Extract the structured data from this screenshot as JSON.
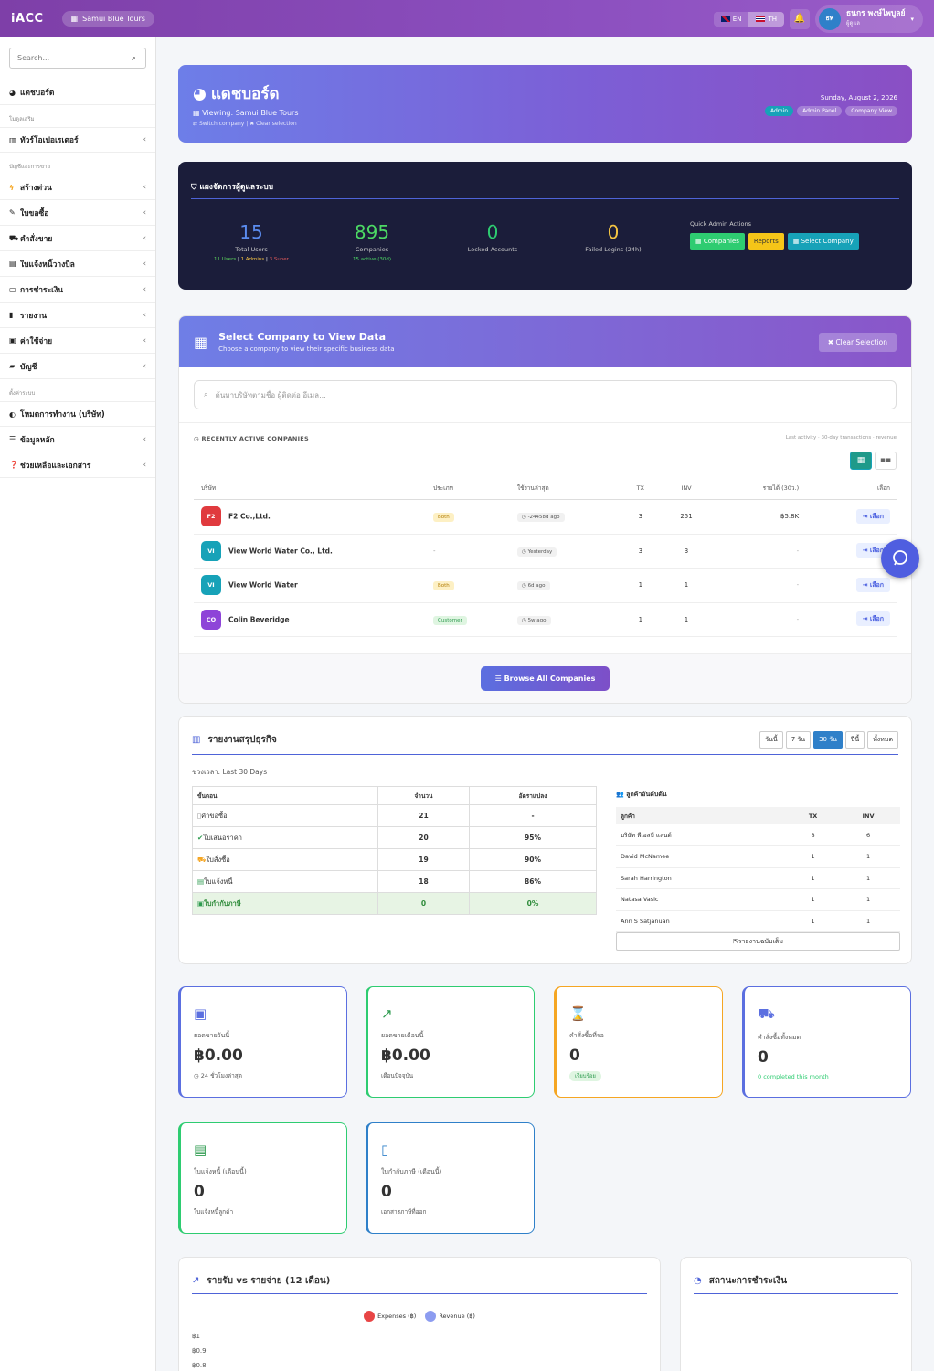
{
  "topbar": {
    "brand": "iACC",
    "company": "Samui Blue Tours",
    "lang_en": "EN",
    "lang_th": "TH",
    "avatar": "ธพ",
    "user_name": "ธนกร พงษ์ไพบูลย์",
    "user_role": "ผู้ดูแล"
  },
  "sidebar": {
    "search_placeholder": "Search...",
    "dashboard": "แดชบอร์ด",
    "sec_modules": "โมดูลเสริม",
    "tour_operator": "ทัวร์โอเปอเรเตอร์",
    "sec_accounting": "บัญชีและการขาย",
    "items": [
      "สร้างด่วน",
      "ใบขอซื้อ",
      "คำสั่งขาย",
      "ใบแจ้งหนี้วางบิล",
      "การชำระเงิน",
      "รายงาน",
      "ค่าใช้จ่าย",
      "บัญชี"
    ],
    "sec_settings": "ตั้งค่าระบบ",
    "work_mode": "โหมดการทำงาน (บริษัท)",
    "master_data": "ข้อมูลหลัก",
    "help": "ช่วยเหลือและเอกสาร"
  },
  "hero": {
    "title": "แดชบอร์ด",
    "viewing": "Viewing: Samui Blue Tours",
    "switch": "Switch company",
    "clear": "Clear selection",
    "date": "Sunday, August 2, 2026",
    "badges": [
      "Admin",
      "Admin Panel",
      "Company View"
    ]
  },
  "admin": {
    "title": "แผงจัดการผู้ดูแลระบบ",
    "total_users": "15",
    "total_users_label": "Total Users",
    "users_sub_a": "11 Users",
    "users_sub_b": "1 Admins",
    "users_sub_c": "3 Super",
    "companies": "895",
    "companies_label": "Companies",
    "companies_sub": "15 active (30d)",
    "locked": "0",
    "locked_label": "Locked Accounts",
    "failed": "0",
    "failed_label": "Failed Logins (24h)",
    "qa_title": "Quick Admin Actions",
    "qa_companies": "Companies",
    "qa_reports": "Reports",
    "qa_select": "Select Company"
  },
  "select": {
    "title": "Select Company to View Data",
    "subtitle": "Choose a company to view their specific business data",
    "clear": "Clear Selection",
    "search_placeholder": "ค้นหาบริษัทตามชื่อ ผู้ติดต่อ อีเมล...",
    "recent_label": "RECENTLY ACTIVE COMPANIES",
    "recent_note": "Last activity · 30-day transactions · revenue",
    "cols": [
      "บริษัท",
      "ประเภท",
      "ใช้งานล่าสุด",
      "TX",
      "INV",
      "รายได้ (30ว.)",
      "เลือก"
    ],
    "rows": [
      {
        "logo": "F2",
        "color": "#e03a3e",
        "name": "F2 Co.,Ltd.",
        "type": "Both",
        "ago": "-24458d ago",
        "tx": "3",
        "inv": "251",
        "rev": "฿5.8K",
        "pick": "เลือก"
      },
      {
        "logo": "VI",
        "color": "#17a2b8",
        "name": "View World Water Co., Ltd.",
        "type": "-",
        "ago": "Yesterday",
        "tx": "3",
        "inv": "3",
        "rev": "-",
        "pick": "เลือก"
      },
      {
        "logo": "VI",
        "color": "#17a2b8",
        "name": "View World Water",
        "type": "Both",
        "ago": "6d ago",
        "tx": "1",
        "inv": "1",
        "rev": "-",
        "pick": "เลือก"
      },
      {
        "logo": "CO",
        "color": "#8e44d8",
        "name": "Colin Beveridge",
        "type": "Customer",
        "ago": "5w ago",
        "tx": "1",
        "inv": "1",
        "rev": "-",
        "pick": "เลือก"
      }
    ],
    "browse": "Browse All Companies"
  },
  "summary": {
    "title": "รายงานสรุปธุรกิจ",
    "periods": [
      "วันนี้",
      "7 วัน",
      "30 วัน",
      "ปีนี้",
      "ทั้งหมด"
    ],
    "range": "ช่วงเวลา: Last 30 Days",
    "step_cols": [
      "ขั้นตอน",
      "จำนวน",
      "อัตราแปลง"
    ],
    "steps": [
      {
        "name": "คำขอซื้อ",
        "count": "21",
        "rate": "-"
      },
      {
        "name": "ใบเสนอราคา",
        "count": "20",
        "rate": "95%"
      },
      {
        "name": "ใบสั่งซื้อ",
        "count": "19",
        "rate": "90%"
      },
      {
        "name": "ใบแจ้งหนี้",
        "count": "18",
        "rate": "86%"
      },
      {
        "name": "ใบกำกับภาษี",
        "count": "0",
        "rate": "0%"
      }
    ],
    "top_title": "ลูกค้าอันดับต้น",
    "top_cols": [
      "ลูกค้า",
      "TX",
      "INV"
    ],
    "top": [
      {
        "name": "บริษัท พีเอสบี แลนด์",
        "tx": "8",
        "inv": "6"
      },
      {
        "name": "David McNamee",
        "tx": "1",
        "inv": "1"
      },
      {
        "name": "Sarah Harrington",
        "tx": "1",
        "inv": "1"
      },
      {
        "name": "Natasa Vasic",
        "tx": "1",
        "inv": "1"
      },
      {
        "name": "Ann S Satjanuan",
        "tx": "1",
        "inv": "1"
      }
    ],
    "full_report": "รายงานฉบับเต็ม"
  },
  "kpis": [
    {
      "label": "ยอดขายวันนี้",
      "value": "฿0.00",
      "sub": "24 ชั่วโมงล่าสุด"
    },
    {
      "label": "ยอดขายเดือนนี้",
      "value": "฿0.00",
      "sub": "เดือนปัจจุบัน"
    },
    {
      "label": "คำสั่งซื้อที่รอ",
      "value": "0",
      "sub": "เรียบร้อย"
    },
    {
      "label": "คำสั่งซื้อทั้งหมด",
      "value": "0",
      "sub": "0 completed this month"
    },
    {
      "label": "ใบแจ้งหนี้ (เดือนนี้)",
      "value": "0",
      "sub": "ใบแจ้งหนี้ลูกค้า"
    },
    {
      "label": "ใบกำกับภาษี (เดือนนี้)",
      "value": "0",
      "sub": "เอกสารภาษีที่ออก"
    }
  ],
  "chart1": {
    "title": "รายรับ vs รายจ่าย (12 เดือน)",
    "legend_exp": "Expenses (฿)",
    "legend_rev": "Revenue (฿)",
    "ticks": [
      "฿1",
      "฿0.9",
      "฿0.8"
    ]
  },
  "chart2": {
    "title": "สถานะการชำระเงิน"
  },
  "colors": {
    "primary": "#4e63d8",
    "success": "#2ecc71",
    "warning": "#f5a623",
    "info": "#2f80c9"
  }
}
